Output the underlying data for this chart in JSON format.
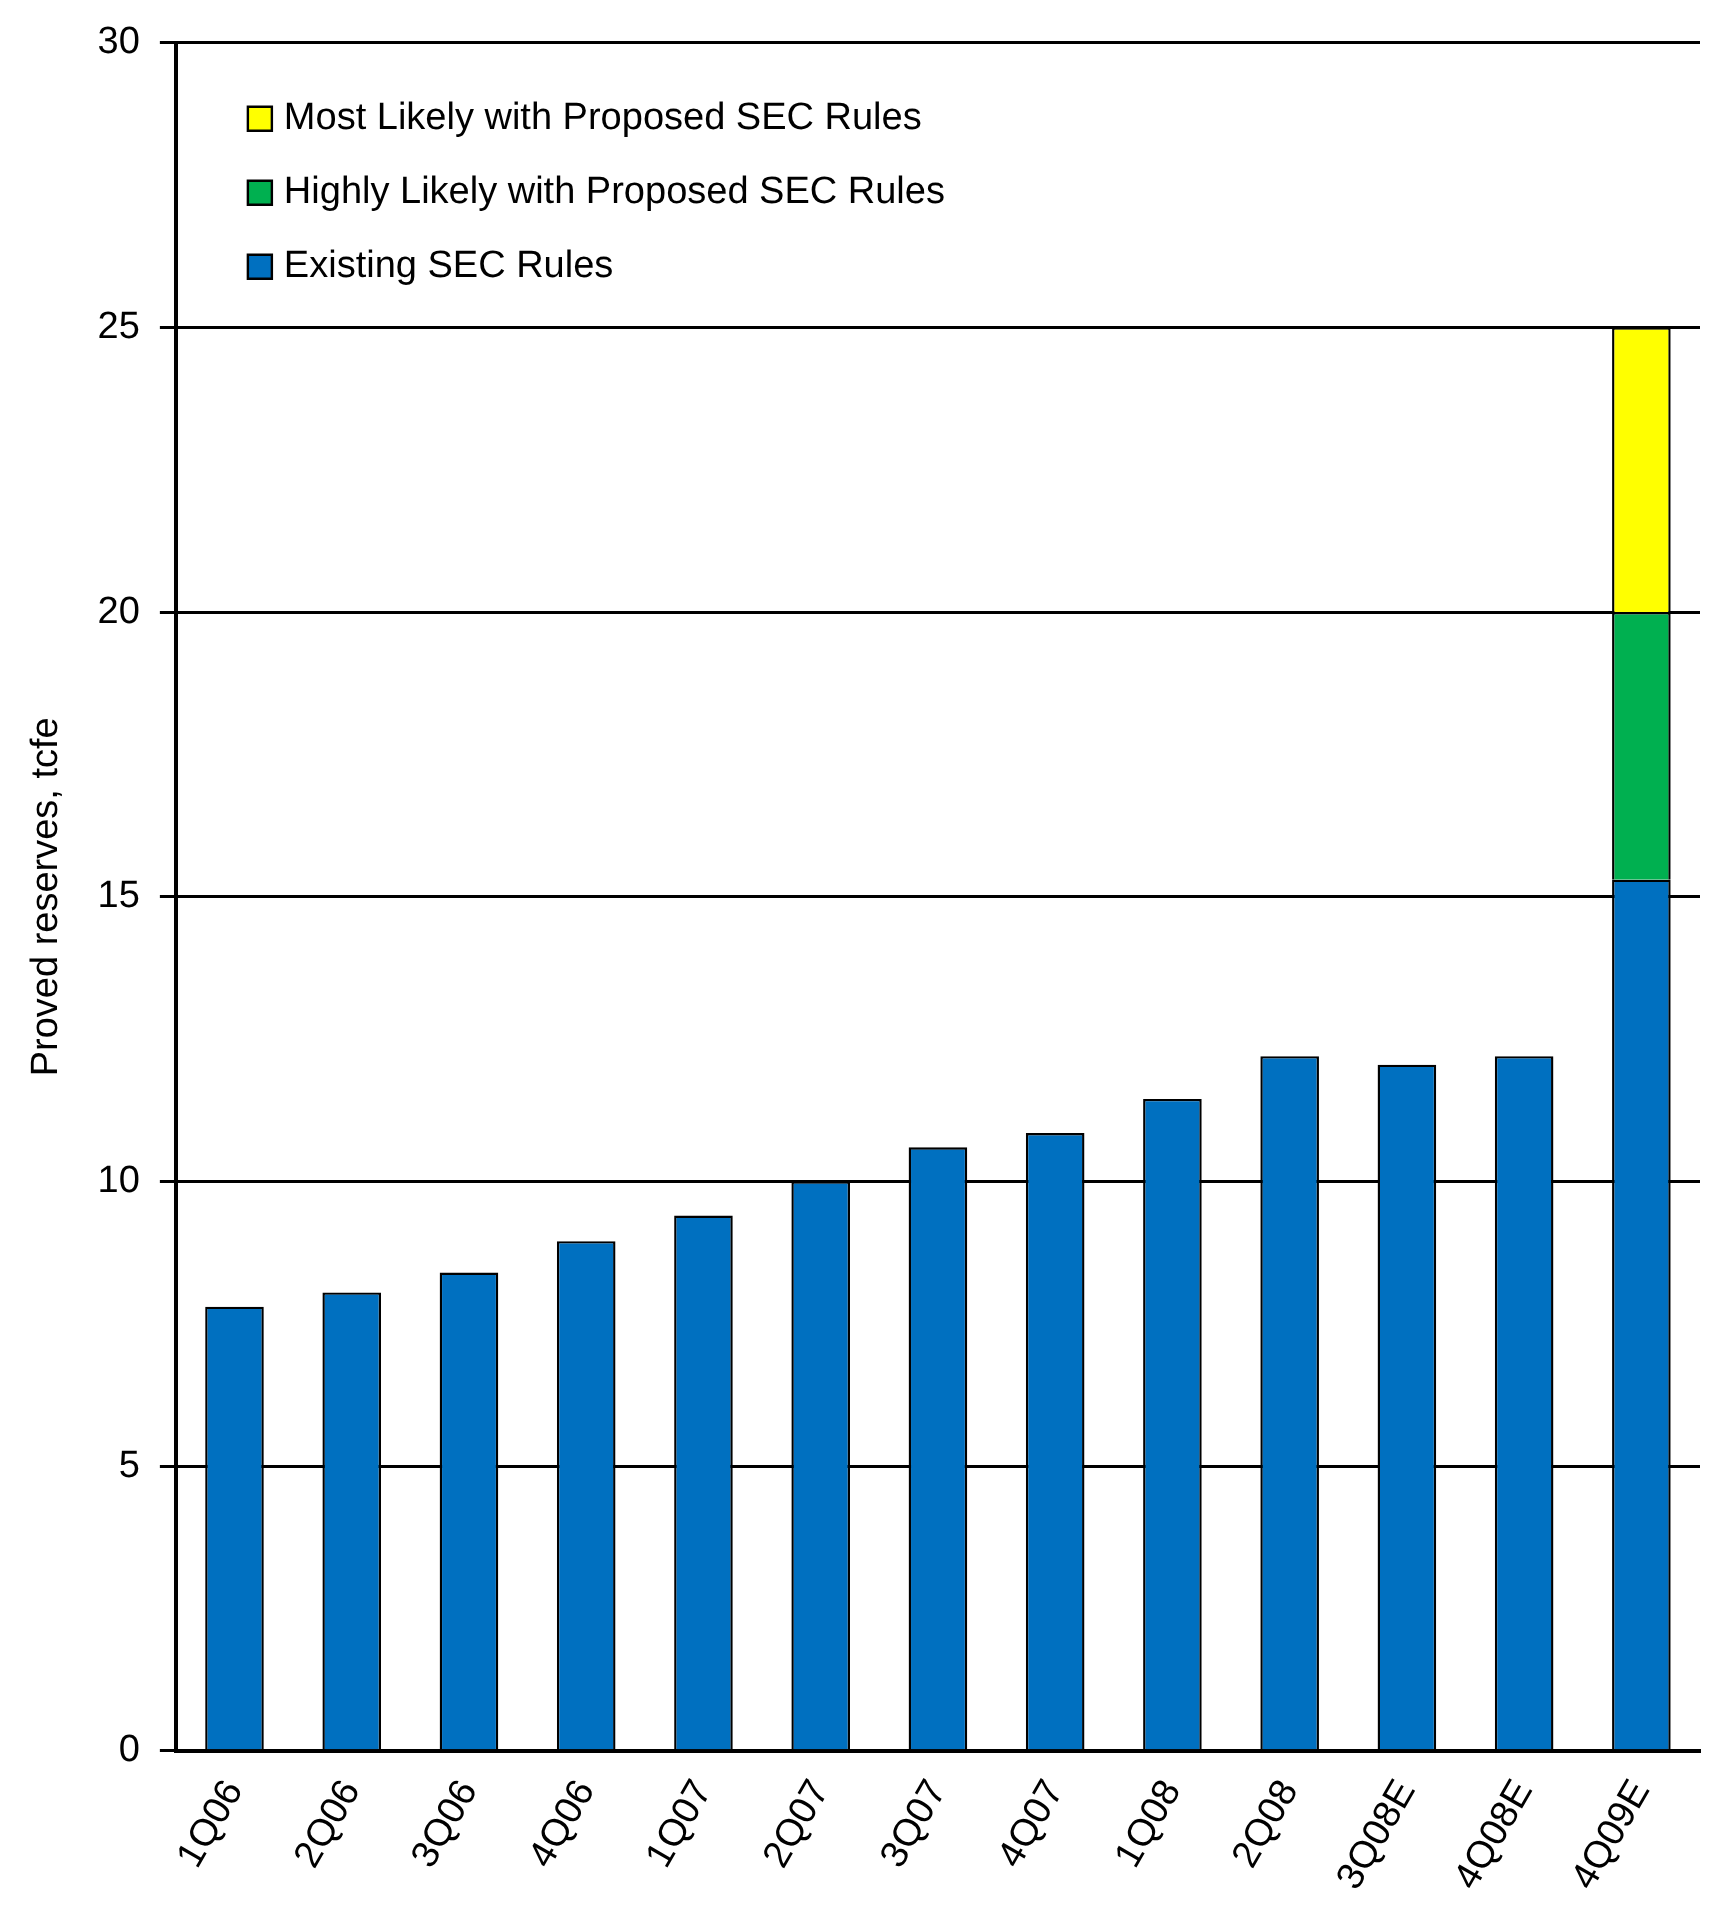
{
  "chart_data": {
    "type": "bar",
    "ylabel": "Proved reserves, tcfe",
    "stacked": true,
    "grid": "y",
    "legend": "top left",
    "categories": [
      "1Q06",
      "2Q06",
      "3Q06",
      "4Q06",
      "1Q07",
      "2Q07",
      "3Q07",
      "4Q07",
      "1Q08",
      "2Q08",
      "3Q08E",
      "4Q08E",
      "4Q09E"
    ],
    "series": [
      {
        "name": "Existing SEC Rules",
        "color": "#0070c0",
        "values": [
          7.8,
          8.05,
          8.4,
          8.95,
          9.4,
          10.0,
          10.6,
          10.85,
          11.45,
          12.2,
          12.05,
          12.2,
          15.3
        ]
      },
      {
        "name": "Highly Likely with Proposed SEC Rules",
        "color": "#00b050",
        "values": [
          null,
          null,
          null,
          null,
          null,
          null,
          null,
          null,
          null,
          null,
          null,
          null,
          4.7
        ]
      },
      {
        "name": "Most Likely with Proposed SEC Rules",
        "color": "#ffff00",
        "values": [
          null,
          null,
          null,
          null,
          null,
          null,
          null,
          null,
          null,
          null,
          null,
          null,
          5.0
        ]
      }
    ],
    "ylim": [
      0,
      30
    ],
    "yticks": [
      0,
      5,
      10,
      15,
      20,
      25,
      30
    ]
  }
}
